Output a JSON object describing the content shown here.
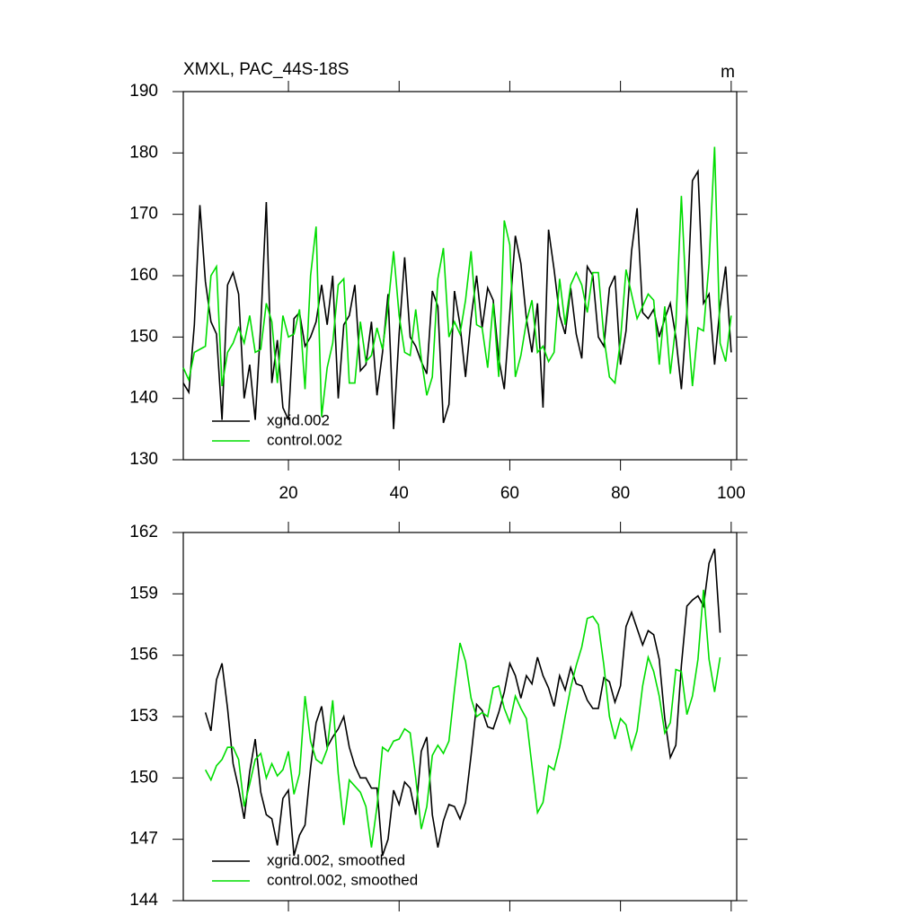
{
  "chart_data": [
    {
      "type": "line",
      "title": "XMXL, PAC_44S-18S",
      "units": "m",
      "x": [
        1,
        2,
        3,
        4,
        5,
        6,
        7,
        8,
        9,
        10,
        11,
        12,
        13,
        14,
        15,
        16,
        17,
        18,
        19,
        20,
        21,
        22,
        23,
        24,
        25,
        26,
        27,
        28,
        29,
        30,
        31,
        32,
        33,
        34,
        35,
        36,
        37,
        38,
        39,
        40,
        41,
        42,
        43,
        44,
        45,
        46,
        47,
        48,
        49,
        50,
        51,
        52,
        53,
        54,
        55,
        56,
        57,
        58,
        59,
        60,
        61,
        62,
        63,
        64,
        65,
        66,
        67,
        68,
        69,
        70,
        71,
        72,
        73,
        74,
        75,
        76,
        77,
        78,
        79,
        80,
        81,
        82,
        83,
        84,
        85,
        86,
        87,
        88,
        89,
        90,
        91,
        92,
        93,
        94,
        95,
        96,
        97,
        98,
        99,
        100
      ],
      "series": [
        {
          "name": "xgrid.002",
          "color": "#000000",
          "values": [
            142.5,
            141,
            152,
            171.5,
            159,
            152.5,
            150.5,
            136.5,
            158.5,
            160.5,
            157,
            140,
            145.5,
            136.5,
            152,
            172,
            142.5,
            149.5,
            138.5,
            136.5,
            153,
            154,
            148.5,
            150,
            152.5,
            158.5,
            152,
            160,
            140,
            152,
            153.5,
            158.5,
            144.5,
            145.5,
            152.5,
            140.5,
            147.5,
            157,
            135,
            150.5,
            163,
            150,
            148.5,
            146,
            144,
            157.5,
            155,
            136,
            139,
            157.5,
            152,
            143.5,
            153,
            160,
            151.5,
            158,
            156,
            146.5,
            141.5,
            154,
            166.5,
            162,
            153,
            147.5,
            155.5,
            138.5,
            167.5,
            161,
            153.5,
            150.5,
            158,
            150.5,
            146.5,
            161.5,
            160,
            150,
            148.5,
            158,
            160,
            145.5,
            151,
            164,
            171,
            154,
            153,
            154.5,
            150,
            153,
            155.5,
            150,
            141.5,
            154,
            175.5,
            177,
            155.5,
            157,
            145.5,
            155,
            161.5,
            147.5
          ]
        },
        {
          "name": "control.002",
          "color": "#00dd00",
          "values": [
            145,
            143,
            147.5,
            148,
            148.5,
            160,
            161.5,
            142,
            147.5,
            149,
            151.5,
            149,
            153.5,
            147.5,
            148,
            155.5,
            152.5,
            142.5,
            153.5,
            150,
            150.5,
            154.5,
            141.5,
            160,
            168,
            137,
            145,
            149,
            158.5,
            159.5,
            142.5,
            142.5,
            152.5,
            146,
            147,
            151.5,
            148,
            155,
            164,
            153.5,
            147.5,
            147,
            154.5,
            146.5,
            140.5,
            143.5,
            159.5,
            164.5,
            150,
            152.5,
            150.5,
            156,
            164,
            152,
            151.5,
            145,
            155.5,
            143.5,
            169,
            165,
            143.5,
            147,
            152.5,
            156,
            147.5,
            148.5,
            146,
            147.5,
            159.5,
            152,
            158.5,
            160.5,
            158.5,
            154,
            160.5,
            160.5,
            150,
            143.5,
            142.5,
            149.5,
            161,
            157,
            153,
            155,
            157,
            156,
            145.5,
            155,
            144,
            152,
            173,
            154,
            142,
            151.5,
            151,
            162,
            181,
            149,
            146,
            153.5
          ]
        }
      ],
      "xlim": [
        1,
        101
      ],
      "xticks": [
        20,
        40,
        60,
        80,
        100
      ],
      "ylim": [
        130,
        190
      ],
      "yticks": [
        130,
        140,
        150,
        160,
        170,
        180,
        190
      ]
    },
    {
      "type": "line",
      "x": [
        1,
        2,
        3,
        4,
        5,
        6,
        7,
        8,
        9,
        10,
        11,
        12,
        13,
        14,
        15,
        16,
        17,
        18,
        19,
        20,
        21,
        22,
        23,
        24,
        25,
        26,
        27,
        28,
        29,
        30,
        31,
        32,
        33,
        34,
        35,
        36,
        37,
        38,
        39,
        40,
        41,
        42,
        43,
        44,
        45,
        46,
        47,
        48,
        49,
        50,
        51,
        52,
        53,
        54,
        55,
        56,
        57,
        58,
        59,
        60,
        61,
        62,
        63,
        64,
        65,
        66,
        67,
        68,
        69,
        70,
        71,
        72,
        73,
        74,
        75,
        76,
        77,
        78,
        79,
        80,
        81,
        82,
        83,
        84,
        85,
        86,
        87,
        88,
        89,
        90,
        91,
        92,
        93,
        94,
        95,
        96,
        97,
        98,
        99,
        100
      ],
      "series": [
        {
          "name": "xgrid.002, smoothed",
          "color": "#000000",
          "values": [
            null,
            null,
            null,
            null,
            153.2,
            152.3,
            154.8,
            155.6,
            153.4,
            150.7,
            149.5,
            148,
            150.3,
            151.9,
            149.3,
            148.2,
            148,
            146.7,
            149,
            149.4,
            146.2,
            147.2,
            147.7,
            150.5,
            152.7,
            153.5,
            151.5,
            152,
            152.4,
            153,
            151.5,
            150.6,
            150,
            150,
            149.5,
            149.5,
            146.2,
            147,
            149.4,
            148.7,
            149.8,
            149.5,
            148.2,
            151.3,
            152,
            148.2,
            146.6,
            147.9,
            148.7,
            148.6,
            148,
            148.8,
            151.1,
            153.6,
            153.3,
            152.5,
            152.4,
            153.2,
            154.2,
            155.6,
            155,
            153.9,
            155,
            154.6,
            155.9,
            155,
            154.4,
            153.5,
            155,
            154.3,
            155.4,
            154.6,
            154.5,
            153.8,
            153.4,
            153.4,
            154.9,
            154.7,
            153.7,
            154.5,
            157.4,
            158.1,
            157.3,
            156.5,
            157.2,
            157,
            155.8,
            152.9,
            151,
            151.6,
            155.5,
            158.4,
            158.7,
            158.9,
            158.4,
            160.5,
            161.2,
            157.1,
            null,
            null
          ]
        },
        {
          "name": "control.002, smoothed",
          "color": "#00dd00",
          "values": [
            null,
            null,
            null,
            null,
            150.4,
            149.9,
            150.6,
            150.9,
            151.5,
            151.5,
            150.9,
            148.6,
            149.7,
            150.9,
            151.2,
            150,
            150.7,
            150.1,
            150.4,
            151.3,
            149.2,
            150.2,
            154,
            151.8,
            150.9,
            150.7,
            151.4,
            153.8,
            150.2,
            147.7,
            149.9,
            149.6,
            149.3,
            148.6,
            146.6,
            148.6,
            151.5,
            151.3,
            151.8,
            151.9,
            152.4,
            152.2,
            150,
            147.5,
            148.6,
            151.1,
            151.6,
            151.2,
            151.8,
            154.3,
            156.6,
            155.7,
            153.9,
            153,
            153.2,
            153,
            154.4,
            154.5,
            153.4,
            152.7,
            154,
            153.4,
            152.9,
            150.6,
            148.3,
            148.8,
            150.6,
            150.4,
            151.5,
            153,
            154.4,
            155.5,
            156.4,
            157.8,
            157.9,
            157.5,
            155.5,
            153,
            151.9,
            152.9,
            152.6,
            151.4,
            152.3,
            154.5,
            155.9,
            155.2,
            154,
            152.2,
            152.7,
            155.3,
            155.2,
            153.1,
            154,
            155.8,
            159.2,
            155.8,
            154.2,
            155.9,
            null,
            null
          ]
        }
      ],
      "xlim": [
        1,
        101
      ],
      "xticks": [
        20,
        40,
        60,
        80,
        100
      ],
      "ylim": [
        144,
        162
      ],
      "yticks": [
        144,
        147,
        150,
        153,
        156,
        159,
        162
      ]
    }
  ]
}
